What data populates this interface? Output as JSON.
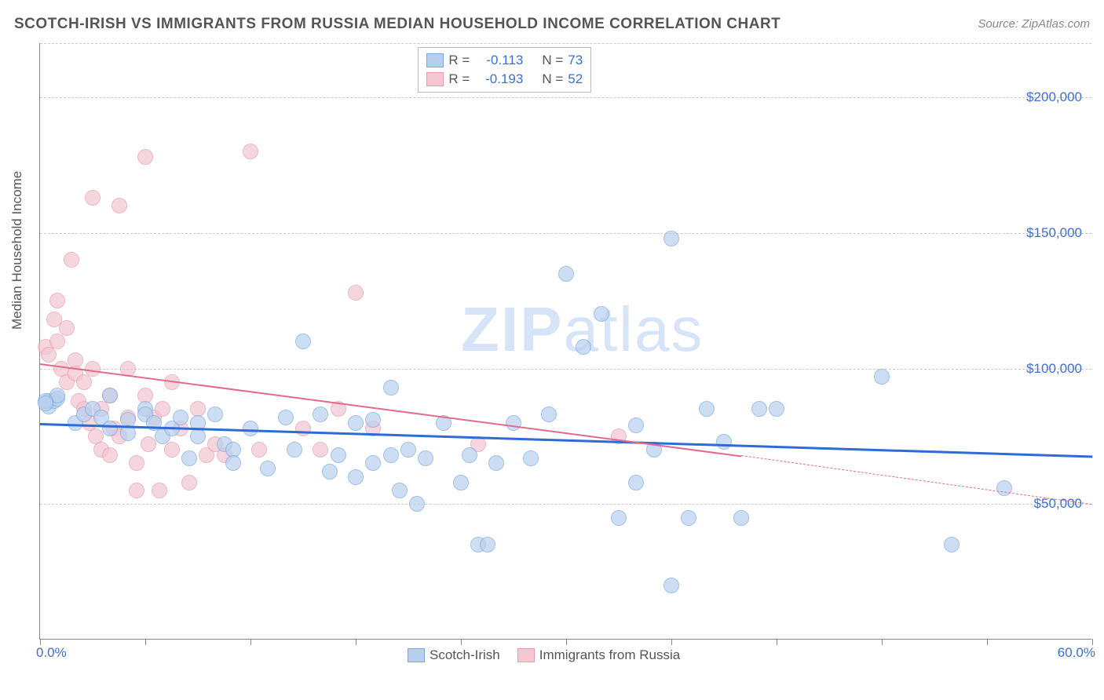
{
  "header": {
    "title": "SCOTCH-IRISH VS IMMIGRANTS FROM RUSSIA MEDIAN HOUSEHOLD INCOME CORRELATION CHART",
    "source_prefix": "Source: ",
    "source": "ZipAtlas.com"
  },
  "chart": {
    "type": "scatter",
    "xlim": [
      0,
      60
    ],
    "ylim": [
      0,
      220000
    ],
    "xlabel_min": "0.0%",
    "xlabel_max": "60.0%",
    "ylabel": "Median Household Income",
    "yticks": [
      {
        "v": 50000,
        "label": "$50,000"
      },
      {
        "v": 100000,
        "label": "$100,000"
      },
      {
        "v": 150000,
        "label": "$150,000"
      },
      {
        "v": 200000,
        "label": "$200,000"
      }
    ],
    "xticks_minor": [
      0,
      6,
      12,
      18,
      24,
      30,
      36,
      42,
      48,
      54,
      60
    ],
    "background_color": "#ffffff",
    "grid_color": "#cccccc",
    "axis_color": "#888888",
    "watermark": {
      "text": "ZIPatlas",
      "z_part": "ZIP",
      "rest": "atlas",
      "color": "#d7e3f7"
    },
    "series": [
      {
        "id": "scotch_irish",
        "name": "Scotch-Irish",
        "fill": "#b8d0ee",
        "stroke": "#7ca8dd",
        "opacity": 0.7,
        "marker_radius": 10,
        "R": "-0.113",
        "N": "73",
        "trend": {
          "y1": 80000,
          "y2": 68000,
          "color": "#2e6bd6",
          "width": 2.5
        },
        "points": [
          [
            0.5,
            88000
          ],
          [
            0.5,
            86000
          ],
          [
            0.8,
            88000
          ],
          [
            1,
            89000
          ],
          [
            1,
            90000
          ],
          [
            0.3,
            88000
          ],
          [
            0.3,
            87000
          ],
          [
            2,
            80000
          ],
          [
            2.5,
            83000
          ],
          [
            3,
            85000
          ],
          [
            3.5,
            82000
          ],
          [
            4,
            90000
          ],
          [
            4,
            78000
          ],
          [
            5,
            81000
          ],
          [
            5,
            76000
          ],
          [
            6,
            85000
          ],
          [
            6,
            83000
          ],
          [
            6.5,
            80000
          ],
          [
            7,
            75000
          ],
          [
            7.5,
            78000
          ],
          [
            8,
            82000
          ],
          [
            8.5,
            67000
          ],
          [
            9,
            80000
          ],
          [
            9,
            75000
          ],
          [
            10,
            83000
          ],
          [
            10.5,
            72000
          ],
          [
            11,
            70000
          ],
          [
            11,
            65000
          ],
          [
            12,
            78000
          ],
          [
            13,
            63000
          ],
          [
            14,
            82000
          ],
          [
            14.5,
            70000
          ],
          [
            15,
            110000
          ],
          [
            16,
            83000
          ],
          [
            16.5,
            62000
          ],
          [
            17,
            68000
          ],
          [
            18,
            80000
          ],
          [
            18,
            60000
          ],
          [
            19,
            81000
          ],
          [
            19,
            65000
          ],
          [
            20,
            93000
          ],
          [
            20,
            68000
          ],
          [
            20.5,
            55000
          ],
          [
            21,
            70000
          ],
          [
            21.5,
            50000
          ],
          [
            22,
            67000
          ],
          [
            23,
            80000
          ],
          [
            24,
            58000
          ],
          [
            24.5,
            68000
          ],
          [
            25,
            35000
          ],
          [
            25.5,
            35000
          ],
          [
            26,
            65000
          ],
          [
            27,
            80000
          ],
          [
            28,
            67000
          ],
          [
            29,
            83000
          ],
          [
            30,
            135000
          ],
          [
            31,
            108000
          ],
          [
            32,
            120000
          ],
          [
            33,
            45000
          ],
          [
            34,
            58000
          ],
          [
            34,
            79000
          ],
          [
            35,
            70000
          ],
          [
            36,
            148000
          ],
          [
            36,
            20000
          ],
          [
            37,
            45000
          ],
          [
            38,
            85000
          ],
          [
            39,
            73000
          ],
          [
            40,
            45000
          ],
          [
            41,
            85000
          ],
          [
            42,
            85000
          ],
          [
            48,
            97000
          ],
          [
            52,
            35000
          ],
          [
            55,
            56000
          ]
        ]
      },
      {
        "id": "immigrants_russia",
        "name": "Immigrants from Russia",
        "fill": "#f3c6d1",
        "stroke": "#e79ab0",
        "opacity": 0.7,
        "marker_radius": 10,
        "R": "-0.193",
        "N": "52",
        "trend": {
          "y1": 102000,
          "y2_at": 40,
          "y2": 68000,
          "dash_to": 60,
          "dash_y2": 50000,
          "color": "#e26b8c",
          "width": 2
        },
        "points": [
          [
            0.3,
            108000
          ],
          [
            0.5,
            105000
          ],
          [
            0.8,
            118000
          ],
          [
            1,
            125000
          ],
          [
            1,
            110000
          ],
          [
            1.2,
            100000
          ],
          [
            1.5,
            115000
          ],
          [
            1.5,
            95000
          ],
          [
            1.8,
            140000
          ],
          [
            2,
            103000
          ],
          [
            2,
            98000
          ],
          [
            2.2,
            88000
          ],
          [
            2.5,
            95000
          ],
          [
            2.5,
            85000
          ],
          [
            2.8,
            80000
          ],
          [
            3,
            163000
          ],
          [
            3,
            100000
          ],
          [
            3.2,
            75000
          ],
          [
            3.5,
            85000
          ],
          [
            3.5,
            70000
          ],
          [
            4,
            90000
          ],
          [
            4,
            68000
          ],
          [
            4.2,
            78000
          ],
          [
            4.5,
            160000
          ],
          [
            4.5,
            75000
          ],
          [
            5,
            100000
          ],
          [
            5,
            82000
          ],
          [
            5.5,
            65000
          ],
          [
            5.5,
            55000
          ],
          [
            6,
            178000
          ],
          [
            6,
            90000
          ],
          [
            6.2,
            72000
          ],
          [
            6.5,
            82000
          ],
          [
            6.8,
            55000
          ],
          [
            7,
            85000
          ],
          [
            7.5,
            95000
          ],
          [
            7.5,
            70000
          ],
          [
            8,
            78000
          ],
          [
            8.5,
            58000
          ],
          [
            9,
            85000
          ],
          [
            9.5,
            68000
          ],
          [
            10,
            72000
          ],
          [
            10.5,
            68000
          ],
          [
            12,
            180000
          ],
          [
            12.5,
            70000
          ],
          [
            15,
            78000
          ],
          [
            16,
            70000
          ],
          [
            17,
            85000
          ],
          [
            18,
            128000
          ],
          [
            19,
            78000
          ],
          [
            25,
            72000
          ],
          [
            33,
            75000
          ]
        ]
      }
    ]
  },
  "legend_top": {
    "r_label": "R =",
    "n_label": "N ="
  },
  "bottom_legend": {
    "series": [
      "Scotch-Irish",
      "Immigrants from Russia"
    ]
  }
}
